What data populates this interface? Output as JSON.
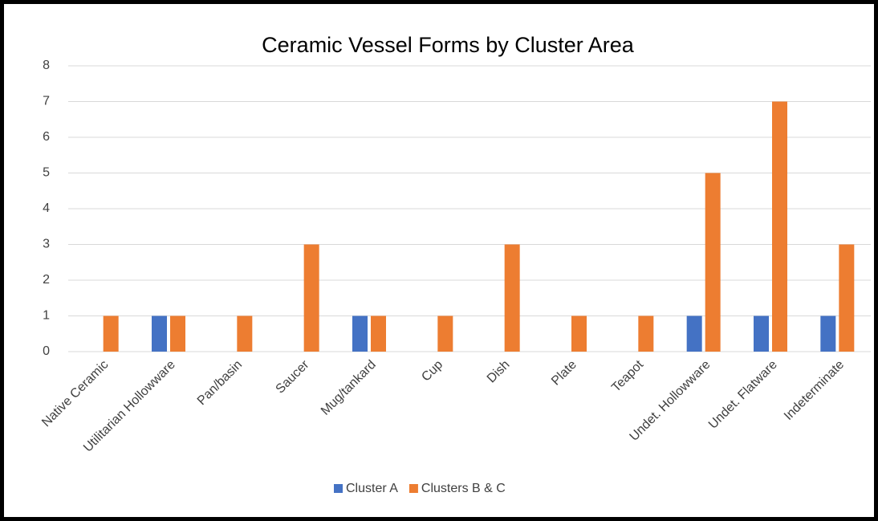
{
  "chart_data": {
    "type": "bar",
    "title": "Ceramic Vessel Forms by Cluster Area",
    "categories": [
      "Native Ceramic",
      "Utilitarian Hollowware",
      "Pan/basin",
      "Saucer",
      "Mug/tankard",
      "Cup",
      "Dish",
      "Plate",
      "Teapot",
      "Undet. Hollowware",
      "Undet. Flatware",
      "Indeterminate"
    ],
    "series": [
      {
        "name": "Cluster A",
        "color": "#4472c4",
        "values": [
          0,
          1,
          0,
          0,
          1,
          0,
          0,
          0,
          0,
          1,
          1,
          1
        ]
      },
      {
        "name": "Clusters B & C",
        "color": "#ed7d31",
        "values": [
          1,
          1,
          1,
          3,
          1,
          1,
          3,
          1,
          1,
          5,
          7,
          3
        ]
      }
    ],
    "ylim": [
      0,
      8
    ],
    "yticks": [
      0,
      1,
      2,
      3,
      4,
      5,
      6,
      7,
      8
    ],
    "grid": true,
    "legend": "bottom"
  }
}
